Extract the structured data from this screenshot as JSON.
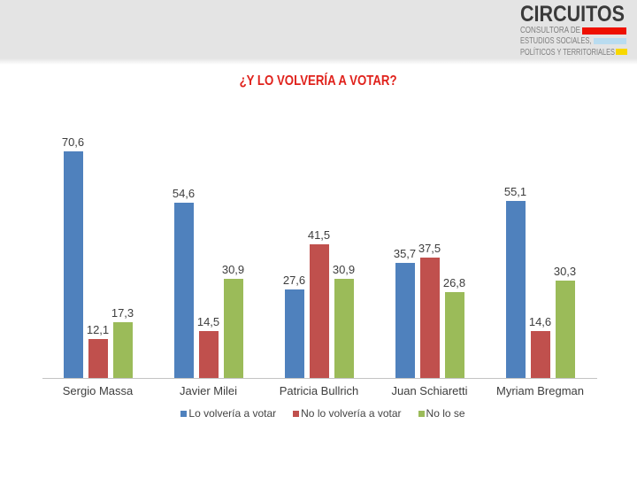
{
  "logo": {
    "brand": "CIRCUITOS",
    "lines": [
      {
        "text": "CONSULTORA DE",
        "bar_color": "#ee1000"
      },
      {
        "text": "ESTUDIOS SOCIALES,",
        "bar_color": "#b9dcf0"
      },
      {
        "text": "POLÍTICOS Y TERRITORIALES",
        "bar_color": "#f8d800"
      }
    ]
  },
  "title": {
    "text": "¿Y LO VOLVERÍA A VOTAR?",
    "color": "#e0221c"
  },
  "chart_data": {
    "type": "bar",
    "title": "¿Y LO VOLVERÍA A VOTAR?",
    "categories": [
      "Sergio Massa",
      "Javier Milei",
      "Patricia Bullrich",
      "Juan Schiaretti",
      "Myriam Bregman"
    ],
    "series": [
      {
        "name": "Lo volvería a votar",
        "color": "#4f81bd",
        "values": [
          70.6,
          54.6,
          27.6,
          35.7,
          55.1
        ]
      },
      {
        "name": "No lo volvería a votar",
        "color": "#c0504d",
        "values": [
          12.1,
          14.5,
          41.5,
          37.5,
          14.6
        ]
      },
      {
        "name": "No lo se",
        "color": "#9bbb59",
        "values": [
          17.3,
          30.9,
          30.9,
          26.8,
          30.3
        ]
      }
    ],
    "value_label_decimal_separator": ",",
    "ylim": [
      0,
      80
    ],
    "grid": false,
    "legend_position": "bottom",
    "xlabel": "",
    "ylabel": ""
  }
}
